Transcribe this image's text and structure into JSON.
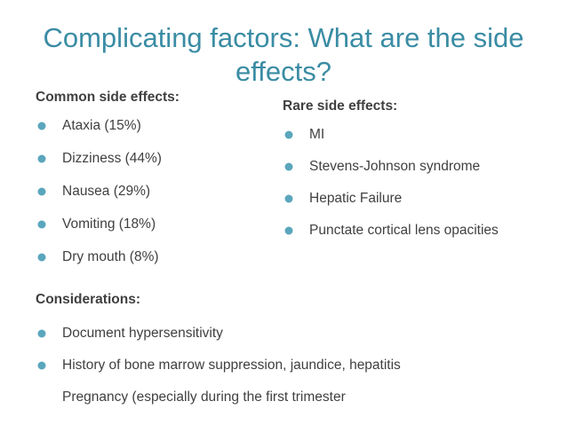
{
  "slide": {
    "title": "Complicating factors: What are the side effects?",
    "common": {
      "heading": "Common side effects:",
      "items": [
        "Ataxia (15%)",
        "Dizziness (44%)",
        "Nausea (29%)",
        "Vomiting (18%)",
        "Dry mouth (8%)"
      ]
    },
    "rare": {
      "heading": "Rare side effects:",
      "items": [
        "MI",
        "Stevens-Johnson syndrome",
        "Hepatic Failure",
        "Punctate cortical lens opacities"
      ]
    },
    "considerations": {
      "heading": "Considerations:",
      "items": [
        "Document hypersensitivity",
        "History of bone marrow suppression, jaundice, hepatitis"
      ],
      "unbulleted": "Pregnancy (especially during the first trimester"
    },
    "colors": {
      "title": "#3a8ca4",
      "bullet": "#5aa6bd",
      "text": "#404040"
    },
    "bullet_icon": "circle-bullet-icon"
  }
}
